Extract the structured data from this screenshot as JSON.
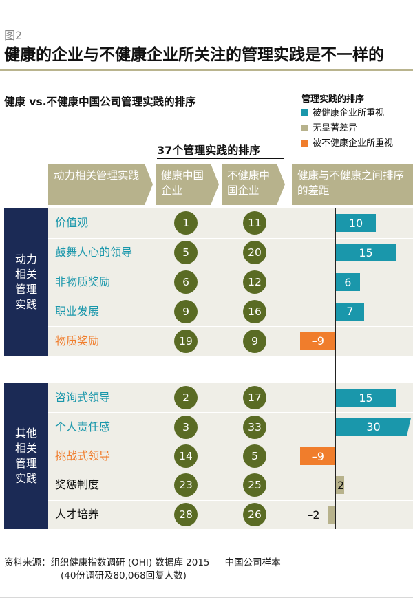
{
  "figure_label": "图2",
  "title": "健康的企业与不健康企业所关注的管理实践是不一样的",
  "subtitle": "健康 vs.不健康中国公司管理实践的排序",
  "legend": {
    "title": "管理实践的排序",
    "items": [
      {
        "label": "被健康企业所重视",
        "color": "#1a97ab"
      },
      {
        "label": "无显著差异",
        "color": "#b7b28c"
      },
      {
        "label": "被不健康企业所重视",
        "color": "#f07d2c"
      }
    ]
  },
  "rank_title": "37个管理实践的排序",
  "headers": {
    "col1": "动力相关管理实践",
    "col2": "健康中国企业",
    "col3": "不健康中国企业",
    "col4": "健康与不健康之间排序的差距"
  },
  "sections": [
    {
      "label": "动力相关管理实践"
    },
    {
      "label": "其他相关管理实践"
    }
  ],
  "source_line1": "资料来源：组织健康指数调研 (OHI) 数据库 2015 — 中国公司样本",
  "source_line2": "(40份调研及80,068回复人数)",
  "colors": {
    "teal": "#1a97ab",
    "orange": "#f07d2c",
    "khaki": "#b7b28c",
    "navy": "#1b2a55",
    "olive": "#5a6b24"
  },
  "chart_data": {
    "type": "table",
    "columns": [
      "动力相关管理实践",
      "健康中国企业",
      "不健康中国企业",
      "健康与不健康之间排序的差距"
    ],
    "rows": [
      {
        "section": 0,
        "practice": "价值观",
        "healthy": 1,
        "unhealthy": 11,
        "gap": 10,
        "category": "healthy"
      },
      {
        "section": 0,
        "practice": "鼓舞人心的领导",
        "healthy": 5,
        "unhealthy": 20,
        "gap": 15,
        "category": "healthy"
      },
      {
        "section": 0,
        "practice": "非物质奖励",
        "healthy": 6,
        "unhealthy": 12,
        "gap": 6,
        "category": "healthy"
      },
      {
        "section": 0,
        "practice": "职业发展",
        "healthy": 9,
        "unhealthy": 16,
        "gap": 7,
        "category": "healthy"
      },
      {
        "section": 0,
        "practice": "物质奖励",
        "healthy": 19,
        "unhealthy": 9,
        "gap": -9,
        "gap_label": "–9",
        "category": "unhealthy"
      },
      {
        "section": 1,
        "practice": "咨询式领导",
        "healthy": 2,
        "unhealthy": 17,
        "gap": 15,
        "category": "healthy"
      },
      {
        "section": 1,
        "practice": "个人责任感",
        "healthy": 3,
        "unhealthy": 33,
        "gap": 30,
        "category": "healthy",
        "truncated": true
      },
      {
        "section": 1,
        "practice": "挑战式领导",
        "healthy": 14,
        "unhealthy": 5,
        "gap": -9,
        "gap_label": "–9",
        "category": "unhealthy"
      },
      {
        "section": 1,
        "practice": "奖惩制度",
        "healthy": 23,
        "unhealthy": 25,
        "gap": 2,
        "category": "neutral"
      },
      {
        "section": 1,
        "practice": "人才培养",
        "healthy": 28,
        "unhealthy": 26,
        "gap": -2,
        "gap_label": "–2",
        "category": "neutral"
      }
    ]
  }
}
